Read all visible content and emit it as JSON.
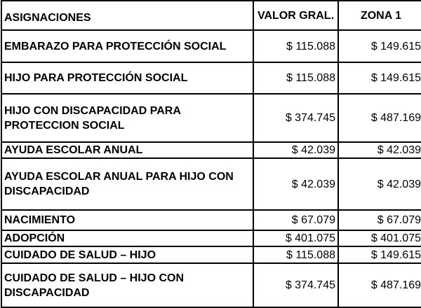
{
  "headers": [
    "ASIGNACIONES",
    "VALOR GRAL.",
    "ZONA 1"
  ],
  "rows": [
    {
      "label": "EMBARAZO PARA PROTECCIÓN SOCIAL",
      "general": "$ 115.088",
      "zona1": "$ 149.615"
    },
    {
      "label": "HIJO PARA PROTECCIÓN SOCIAL",
      "general": "$ 115.088",
      "zona1": "$ 149.615"
    },
    {
      "label": "HIJO CON DISCAPACIDAD PARA PROTECCION SOCIAL",
      "general": "$ 374.745",
      "zona1": "$ 487.169"
    },
    {
      "label": "AYUDA ESCOLAR ANUAL",
      "general": "$ 42.039",
      "zona1": "$ 42.039"
    },
    {
      "label": "AYUDA ESCOLAR ANUAL PARA HIJO CON DISCAPACIDAD",
      "general": "$ 42.039",
      "zona1": "$ 42.039"
    },
    {
      "label": "NACIMIENTO",
      "general": "$ 67.079",
      "zona1": "$ 67.079"
    },
    {
      "label": "ADOPCIÓN",
      "general": "$ 401.075",
      "zona1": "$ 401.075"
    },
    {
      "label": "CUIDADO DE SALUD – HIJO",
      "general": "$ 115.088",
      "zona1": "$ 149.615"
    },
    {
      "label": "CUIDADO DE SALUD – HIJO CON DISCAPACIDAD",
      "general": "$ 374.745",
      "zona1": "$ 487.169"
    }
  ]
}
